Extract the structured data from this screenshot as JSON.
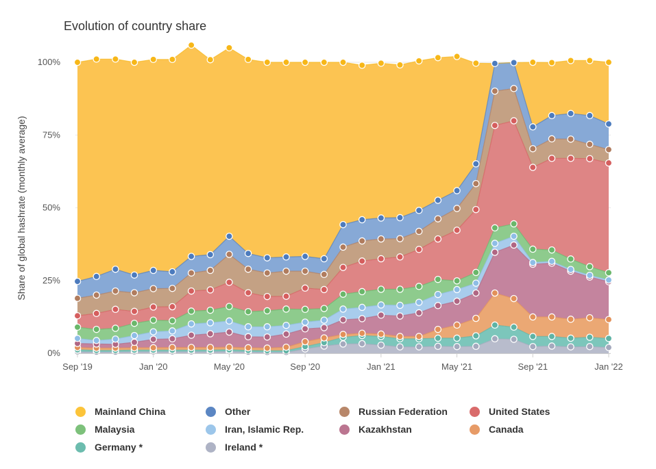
{
  "chart_data": {
    "type": "area",
    "stacked": true,
    "title": "Evolution of country share",
    "ylabel": "Share of global hashrate (monthly average)",
    "xlabel": "",
    "ylim": [
      0,
      100
    ],
    "y_ticks": [
      "0%",
      "25%",
      "50%",
      "75%",
      "100%"
    ],
    "x_ticks": [
      {
        "label": "Sep '19",
        "index": 0
      },
      {
        "label": "Jan '20",
        "index": 4
      },
      {
        "label": "May '20",
        "index": 8
      },
      {
        "label": "Sep '20",
        "index": 12
      },
      {
        "label": "Jan '21",
        "index": 16
      },
      {
        "label": "May '21",
        "index": 20
      },
      {
        "label": "Sep '21",
        "index": 24
      },
      {
        "label": "Jan '22",
        "index": 28
      }
    ],
    "x": [
      "2019-09",
      "2019-10",
      "2019-11",
      "2019-12",
      "2020-01",
      "2020-02",
      "2020-03",
      "2020-04",
      "2020-05",
      "2020-06",
      "2020-07",
      "2020-08",
      "2020-09",
      "2020-10",
      "2020-11",
      "2020-12",
      "2021-01",
      "2021-02",
      "2021-03",
      "2021-04",
      "2021-05",
      "2021-06",
      "2021-07",
      "2021-08",
      "2021-09",
      "2021-10",
      "2021-11",
      "2021-12",
      "2022-01"
    ],
    "stack_order": "bottom-to-top",
    "series": [
      {
        "name": "Ireland *",
        "color": "#b8bccc",
        "values": [
          0.5,
          0.4,
          0.4,
          0.5,
          0.5,
          0.5,
          0.5,
          0.5,
          0.6,
          0.4,
          0.3,
          0.3,
          1.5,
          2.5,
          3.2,
          3.3,
          2.8,
          2.2,
          2.2,
          2.4,
          2.3,
          2.4,
          5.0,
          4.8,
          2.3,
          2.5,
          2.2,
          2.3,
          2.0
        ]
      },
      {
        "name": "Germany *",
        "color": "#7cc6bb",
        "values": [
          0.7,
          0.6,
          0.6,
          0.6,
          0.6,
          0.6,
          0.6,
          0.6,
          0.6,
          0.6,
          0.6,
          0.6,
          0.8,
          1.2,
          2.3,
          2.8,
          3.0,
          2.8,
          2.8,
          2.8,
          2.9,
          3.6,
          4.7,
          4.2,
          3.5,
          3.3,
          3.0,
          3.2,
          3.1
        ]
      },
      {
        "name": "Canada",
        "color": "#eba874",
        "values": [
          0.8,
          0.8,
          0.8,
          0.8,
          0.8,
          0.9,
          0.9,
          0.9,
          0.9,
          0.9,
          0.9,
          1.2,
          1.7,
          1.6,
          1.0,
          0.8,
          0.8,
          0.8,
          0.8,
          3.0,
          4.5,
          6.0,
          11.0,
          9.8,
          6.7,
          6.7,
          6.5,
          6.7,
          6.5
        ]
      },
      {
        "name": "Kazakhstan",
        "color": "#c4849e",
        "values": [
          1.4,
          1.4,
          1.3,
          1.9,
          2.9,
          3.0,
          4.2,
          4.7,
          5.2,
          3.8,
          3.8,
          4.5,
          4.4,
          3.5,
          5.0,
          5.0,
          6.5,
          7.0,
          8.1,
          8.2,
          8.2,
          8.7,
          14.0,
          18.4,
          18.1,
          18.5,
          16.5,
          14.0,
          13.0
        ]
      },
      {
        "name": "Iran, Islamic Rep.",
        "color": "#a8ccec",
        "values": [
          1.7,
          1.2,
          1.8,
          2.3,
          2.6,
          2.7,
          3.9,
          3.8,
          3.8,
          3.4,
          3.5,
          3.0,
          2.3,
          2.6,
          3.7,
          3.9,
          3.5,
          3.7,
          3.6,
          3.8,
          4.0,
          3.4,
          3.1,
          3.0,
          0.6,
          0.6,
          0.6,
          0.6,
          0.6
        ]
      },
      {
        "name": "Malaysia",
        "color": "#8ecb8d",
        "values": [
          3.9,
          3.8,
          3.7,
          4.2,
          4.0,
          3.5,
          4.4,
          4.3,
          5.0,
          5.2,
          5.5,
          5.6,
          4.4,
          4.0,
          5.1,
          5.4,
          5.4,
          5.5,
          5.5,
          5.2,
          3.0,
          3.7,
          5.3,
          4.3,
          4.6,
          3.9,
          3.6,
          3.0,
          2.5
        ]
      },
      {
        "name": "United States",
        "color": "#de8585",
        "values": [
          3.9,
          5.5,
          6.5,
          4.1,
          4.5,
          4.8,
          6.9,
          7.0,
          8.3,
          6.5,
          4.9,
          4.4,
          7.3,
          6.5,
          9.2,
          10.5,
          10.5,
          11.1,
          12.7,
          13.9,
          17.4,
          21.6,
          35.2,
          35.4,
          28.1,
          31.5,
          34.6,
          37.1,
          37.7
        ]
      },
      {
        "name": "Russian Federation",
        "color": "#c4a184",
        "values": [
          6.0,
          6.3,
          6.3,
          6.4,
          6.3,
          6.3,
          6.2,
          6.7,
          9.6,
          8.1,
          8.1,
          8.6,
          5.8,
          5.2,
          7.0,
          6.9,
          6.8,
          6.3,
          6.2,
          6.9,
          7.5,
          8.9,
          11.8,
          11.1,
          6.4,
          6.7,
          6.6,
          4.9,
          4.6
        ]
      },
      {
        "name": "Other",
        "color": "#87a9d6",
        "values": [
          5.8,
          6.4,
          7.5,
          6.1,
          6.3,
          5.7,
          5.7,
          5.4,
          6.2,
          5.4,
          5.2,
          4.9,
          5.1,
          5.4,
          7.7,
          7.3,
          7.2,
          7.2,
          7.2,
          6.4,
          6.1,
          6.8,
          9.5,
          8.9,
          7.5,
          8.0,
          8.8,
          9.9,
          8.8
        ]
      },
      {
        "name": "Mainland China",
        "color": "#fcc452",
        "values": [
          75.3,
          74.7,
          72.2,
          73.1,
          72.5,
          73.0,
          72.6,
          67.0,
          64.8,
          66.7,
          67.2,
          66.9,
          66.7,
          67.5,
          55.8,
          53.1,
          53.2,
          52.5,
          51.4,
          49.0,
          46.1,
          34.6,
          0,
          0,
          22.2,
          18.2,
          18.2,
          18.9,
          21.2
        ]
      }
    ],
    "legend": {
      "placement": "bottom",
      "entries": [
        {
          "label": "Mainland China",
          "color": "#fcc43a"
        },
        {
          "label": "Other",
          "color": "#5b86c3"
        },
        {
          "label": "Russian Federation",
          "color": "#b8876a"
        },
        {
          "label": "United States",
          "color": "#d96b6b"
        },
        {
          "label": "Malaysia",
          "color": "#7dc17b"
        },
        {
          "label": "Iran, Islamic Rep.",
          "color": "#9cc6ea"
        },
        {
          "label": "Kazakhstan",
          "color": "#bb7590"
        },
        {
          "label": "Canada",
          "color": "#e79b67"
        },
        {
          "label": "Germany *",
          "color": "#6cbcae"
        },
        {
          "label": "Ireland *",
          "color": "#aeb3c5"
        }
      ]
    },
    "grid": true
  },
  "marker_colors": {
    "Mainland China": "#f7b718",
    "Other": "#4c7bbd",
    "Russian Federation": "#b07c5e",
    "United States": "#d55e5e",
    "Malaysia": "#6ab76a",
    "Iran, Islamic Rep.": "#8ebde6",
    "Kazakhstan": "#b06683",
    "Canada": "#e29059",
    "Germany *": "#5fb3a4",
    "Ireland *": "#a4a9bd"
  }
}
